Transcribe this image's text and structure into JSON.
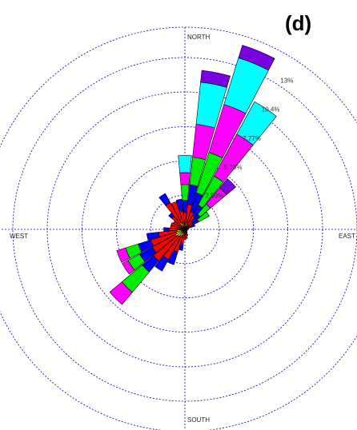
{
  "panel_label": "(d)",
  "chart_data": {
    "type": "wind-rose",
    "direction_labels": {
      "north": "NORTH",
      "south": "SOUTH",
      "east": "EAST",
      "west": "WEST"
    },
    "ring_values": [
      2.59,
      5.18,
      7.77,
      10.4,
      13
    ],
    "ring_labels": [
      "2,59%",
      "5,18%",
      "7,77%",
      "10,4%",
      "13%"
    ],
    "rmax": 15.3,
    "grid": true,
    "sector_width_deg": 11.25,
    "bin_colors": [
      "#ffff00",
      "#ff0000",
      "#0000ff",
      "#00ee00",
      "#ff00ff",
      "#00ffff",
      "#7b00e0"
    ],
    "sectors": [
      {
        "direction_deg": 0,
        "values": [
          0.3,
          1.0,
          0.9,
          1.2,
          0.9,
          1.3,
          0.0
        ]
      },
      {
        "direction_deg": 11.25,
        "values": [
          0.5,
          1.4,
          1.5,
          2.1,
          2.5,
          3.2,
          0.9
        ]
      },
      {
        "direction_deg": 22.5,
        "values": [
          0.4,
          1.0,
          1.5,
          3.2,
          3.8,
          3.7,
          1.0
        ]
      },
      {
        "direction_deg": 33.75,
        "values": [
          0.3,
          0.9,
          0.9,
          2.5,
          3.6,
          2.8,
          0.0
        ]
      },
      {
        "direction_deg": 45,
        "values": [
          0.2,
          0.6,
          0.7,
          1.0,
          1.6,
          0.0,
          0.9
        ]
      },
      {
        "direction_deg": 56.25,
        "values": [
          0.2,
          0.5,
          0.5,
          0.9,
          0.0,
          0.0,
          0.0
        ]
      },
      {
        "direction_deg": 67.5,
        "values": [
          0.1,
          0.4,
          0.3,
          0.0,
          0.0,
          0.0,
          0.0
        ]
      },
      {
        "direction_deg": 78.75,
        "values": [
          0.1,
          0.2,
          0.0,
          0.0,
          0.0,
          0.0,
          0.0
        ]
      },
      {
        "direction_deg": 90,
        "values": [
          0.1,
          0.1,
          0.0,
          0.0,
          0.0,
          0.0,
          0.0
        ]
      },
      {
        "direction_deg": 101.25,
        "values": [
          0.1,
          0.1,
          0.0,
          0.0,
          0.0,
          0.0,
          0.0
        ]
      },
      {
        "direction_deg": 112.5,
        "values": [
          0.1,
          0.1,
          0.0,
          0.0,
          0.0,
          0.0,
          0.0
        ]
      },
      {
        "direction_deg": 123.75,
        "values": [
          0.1,
          0.1,
          0.0,
          0.0,
          0.0,
          0.0,
          0.0
        ]
      },
      {
        "direction_deg": 135,
        "values": [
          0.1,
          0.1,
          0.0,
          0.0,
          0.0,
          0.0,
          0.0
        ]
      },
      {
        "direction_deg": 146.25,
        "values": [
          0.1,
          0.2,
          0.0,
          0.0,
          0.0,
          0.0,
          0.0
        ]
      },
      {
        "direction_deg": 157.5,
        "values": [
          0.2,
          0.3,
          0.0,
          0.0,
          0.0,
          0.0,
          0.0
        ]
      },
      {
        "direction_deg": 168.75,
        "values": [
          0.2,
          0.5,
          0.0,
          0.0,
          0.0,
          0.0,
          0.0
        ]
      },
      {
        "direction_deg": 180,
        "values": [
          0.2,
          0.6,
          0.0,
          0.0,
          0.0,
          0.0,
          0.0
        ]
      },
      {
        "direction_deg": 191.25,
        "values": [
          0.3,
          0.8,
          0.5,
          0.0,
          0.0,
          0.0,
          0.0
        ]
      },
      {
        "direction_deg": 202.5,
        "values": [
          0.5,
          1.3,
          1.0,
          0.0,
          0.0,
          0.0,
          0.0
        ]
      },
      {
        "direction_deg": 213.75,
        "values": [
          0.6,
          2.0,
          1.0,
          0.0,
          0.0,
          0.0,
          0.0
        ]
      },
      {
        "direction_deg": 225,
        "values": [
          0.7,
          2.4,
          1.1,
          2.0,
          1.2,
          0.0,
          0.0
        ]
      },
      {
        "direction_deg": 236.25,
        "values": [
          0.8,
          2.0,
          1.1,
          1.0,
          0.5,
          0.0,
          0.0
        ]
      },
      {
        "direction_deg": 247.5,
        "values": [
          0.7,
          2.0,
          1.0,
          1.0,
          0.7,
          0.0,
          0.0
        ]
      },
      {
        "direction_deg": 258.75,
        "values": [
          0.6,
          1.4,
          0.9,
          0.0,
          0.0,
          0.0,
          0.0
        ]
      },
      {
        "direction_deg": 270,
        "values": [
          0.3,
          0.9,
          0.4,
          0.0,
          0.0,
          0.0,
          0.0
        ]
      },
      {
        "direction_deg": 281.25,
        "values": [
          0.3,
          0.8,
          0.0,
          0.0,
          0.0,
          0.0,
          0.0
        ]
      },
      {
        "direction_deg": 292.5,
        "values": [
          0.3,
          0.8,
          0.0,
          0.0,
          0.0,
          0.0,
          0.0
        ]
      },
      {
        "direction_deg": 303.75,
        "values": [
          0.3,
          0.7,
          0.0,
          0.0,
          0.0,
          0.0,
          0.0
        ]
      },
      {
        "direction_deg": 315,
        "values": [
          0.4,
          0.9,
          0.3,
          0.0,
          0.0,
          0.0,
          0.0
        ]
      },
      {
        "direction_deg": 326.25,
        "values": [
          0.6,
          1.7,
          0.8,
          0.0,
          0.0,
          0.0,
          0.0
        ]
      },
      {
        "direction_deg": 337.5,
        "values": [
          0.5,
          1.7,
          0.0,
          0.0,
          0.0,
          0.0,
          0.0
        ]
      },
      {
        "direction_deg": 348.75,
        "values": [
          0.4,
          1.0,
          0.9,
          0.0,
          0.0,
          0.0,
          0.0
        ]
      }
    ]
  }
}
